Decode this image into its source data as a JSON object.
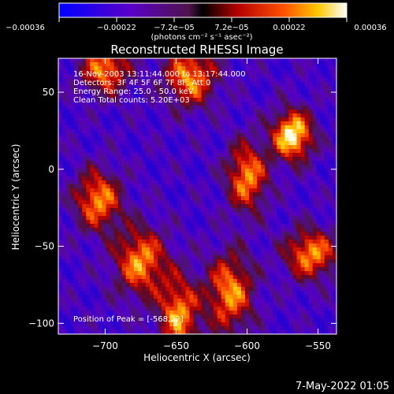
{
  "colorbar": {
    "ticks": [
      "−0.00036",
      "−0.00022",
      "−7.2e−05",
      "7.2e−05",
      "0.00022",
      "0.00036"
    ],
    "units": "(photons cm⁻² s⁻¹ asec⁻²)"
  },
  "title": "Reconstructed RHESSI Image",
  "annotations": {
    "line1": "16-Nov-2003 13:11:44.000 to 13:17:44.000",
    "line2": "Detectors: 3F 4F 5F 6F 7F 8F, Att 0",
    "line3": "Energy Range: 25.0 - 50.0 keV",
    "line4": "Clean    Total counts: 5.20E+03",
    "peak": "Position of Peak = [-568,22]"
  },
  "footer": {
    "timestamp": "7-May-2022 01:05"
  },
  "chart_data": {
    "type": "heatmap",
    "title": "Reconstructed RHESSI Image",
    "xlabel": "Heliocentric X (arcsec)",
    "ylabel": "Heliocentric Y (arcsec)",
    "xlim": [
      -733,
      -537
    ],
    "ylim": [
      -107,
      72
    ],
    "xticks": [
      -700,
      -650,
      -600,
      -550
    ],
    "yticks": [
      -100,
      -50,
      0,
      50
    ],
    "xtick_labels": [
      "−700",
      "−650",
      "−600",
      "−550"
    ],
    "ytick_labels": [
      "−100",
      "−50",
      "0",
      "50"
    ],
    "colorbar_range": [
      -0.00036,
      0.00036
    ],
    "peak_position": [
      -568,
      22
    ],
    "bright_sources": [
      {
        "x": -568,
        "y": 22
      },
      {
        "x": -705,
        "y": -20
      },
      {
        "x": -675,
        "y": -60
      },
      {
        "x": -648,
        "y": -95
      },
      {
        "x": -700,
        "y": 65
      },
      {
        "x": -640,
        "y": 60
      },
      {
        "x": -600,
        "y": -5
      },
      {
        "x": -612,
        "y": -80
      },
      {
        "x": -555,
        "y": -55
      }
    ],
    "colormap": "red-temperature"
  }
}
